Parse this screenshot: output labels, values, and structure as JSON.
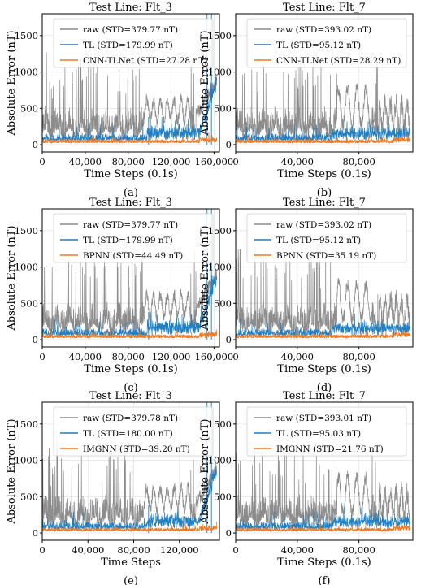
{
  "colors": {
    "raw": "#8c8c8c",
    "tl": "#1f7fc4",
    "model": "#f07a22",
    "grid": "#e6e6e6",
    "axis": "#000000"
  },
  "chart_data": [
    {
      "id": "a",
      "type": "line",
      "title": "Test Line: Flt_3",
      "caption": "(a)",
      "xlabel": "Time Steps (0.1s)",
      "ylabel": "Absolute Error (nT)",
      "xlim": [
        0,
        165000
      ],
      "ylim": [
        -100,
        1800
      ],
      "xticks": [
        0,
        40000,
        80000,
        120000,
        160000
      ],
      "xtick_labels": [
        "0",
        "40,000",
        "80,000",
        "120,000",
        "160,000"
      ],
      "yticks": [
        0,
        500,
        1000,
        1500
      ],
      "ytick_labels": [
        "0",
        "500",
        "1000",
        "1500"
      ],
      "grid": true,
      "legend_position": "top-right",
      "series": [
        {
          "name": "raw (STD=379.77 nT)",
          "color_key": "raw"
        },
        {
          "name": "TL (STD=179.99 nT)",
          "color_key": "tl"
        },
        {
          "name": "CNN-TLNet (STD=27.28 nT)",
          "color_key": "model"
        }
      ]
    },
    {
      "id": "b",
      "type": "line",
      "title": "Test Line: Flt_7",
      "caption": "(b)",
      "xlabel": "Time Steps (0.1s)",
      "ylabel": "Absolute Error (nT)",
      "xlim": [
        0,
        115000
      ],
      "ylim": [
        -100,
        1800
      ],
      "xticks": [
        0,
        40000,
        80000
      ],
      "xtick_labels": [
        "0",
        "40,000",
        "80,000"
      ],
      "yticks": [
        0,
        500,
        1000,
        1500
      ],
      "ytick_labels": [
        "0",
        "500",
        "1000",
        "1500"
      ],
      "grid": true,
      "legend_position": "top-right",
      "series": [
        {
          "name": "raw (STD=393.02 nT)",
          "color_key": "raw"
        },
        {
          "name": "TL (STD=95.12 nT)",
          "color_key": "tl"
        },
        {
          "name": "CNN-TLNet (STD=28.29 nT)",
          "color_key": "model"
        }
      ]
    },
    {
      "id": "c",
      "type": "line",
      "title": "Test Line: Flt_3",
      "caption": "(c)",
      "xlabel": "Time Steps (0.1s)",
      "ylabel": "Absolute Error (nT)",
      "xlim": [
        0,
        165000
      ],
      "ylim": [
        -100,
        1800
      ],
      "xticks": [
        0,
        40000,
        80000,
        120000,
        160000
      ],
      "xtick_labels": [
        "0",
        "40,000",
        "80,000",
        "120,000",
        "160,000"
      ],
      "yticks": [
        0,
        500,
        1000,
        1500
      ],
      "ytick_labels": [
        "0",
        "500",
        "1000",
        "1500"
      ],
      "grid": true,
      "legend_position": "top-right",
      "series": [
        {
          "name": "raw (STD=379.77 nT)",
          "color_key": "raw"
        },
        {
          "name": "TL (STD=179.99 nT)",
          "color_key": "tl"
        },
        {
          "name": "BPNN (STD=44.49 nT)",
          "color_key": "model"
        }
      ]
    },
    {
      "id": "d",
      "type": "line",
      "title": "Test Line: Flt_7",
      "caption": "(d)",
      "xlabel": "Time Steps (0.1s)",
      "ylabel": "Absolute Error (nT)",
      "xlim": [
        0,
        115000
      ],
      "ylim": [
        -100,
        1800
      ],
      "xticks": [
        0,
        40000,
        80000
      ],
      "xtick_labels": [
        "0",
        "40,000",
        "80,000"
      ],
      "yticks": [
        0,
        500,
        1000,
        1500
      ],
      "ytick_labels": [
        "0",
        "500",
        "1000",
        "1500"
      ],
      "grid": true,
      "legend_position": "top-right",
      "series": [
        {
          "name": "raw (STD=393.02 nT)",
          "color_key": "raw"
        },
        {
          "name": "TL (STD=95.12 nT)",
          "color_key": "tl"
        },
        {
          "name": "BPNN (STD=35.19 nT)",
          "color_key": "model"
        }
      ]
    },
    {
      "id": "e",
      "type": "line",
      "title": "Test Line: Flt_3",
      "caption": "(e)",
      "xlabel": "Time Steps",
      "ylabel": "Absolute Error (nT)",
      "xlim": [
        0,
        155000
      ],
      "ylim": [
        -100,
        1800
      ],
      "xticks": [
        0,
        40000,
        80000,
        120000
      ],
      "xtick_labels": [
        "0",
        "40,000",
        "80,000",
        "120,000"
      ],
      "yticks": [
        0,
        500,
        1000,
        1500
      ],
      "ytick_labels": [
        "0",
        "500",
        "1000",
        "1500"
      ],
      "grid": true,
      "legend_position": "top-right",
      "series": [
        {
          "name": "raw (STD=379.78 nT)",
          "color_key": "raw"
        },
        {
          "name": "TL (STD=180.00 nT)",
          "color_key": "tl"
        },
        {
          "name": "IMGNN (STD=39.20 nT)",
          "color_key": "model"
        }
      ]
    },
    {
      "id": "f",
      "type": "line",
      "title": "Test Line: Flt_7",
      "caption": "(f)",
      "xlabel": "Time Steps (0.1s)",
      "ylabel": "Absolute Error (nT)",
      "xlim": [
        0,
        115000
      ],
      "ylim": [
        -100,
        1800
      ],
      "xticks": [
        0,
        40000,
        80000
      ],
      "xtick_labels": [
        "0",
        "40,000",
        "80,000"
      ],
      "yticks": [
        0,
        500,
        1000,
        1500
      ],
      "ytick_labels": [
        "0",
        "500",
        "1000",
        "1500"
      ],
      "grid": true,
      "legend_position": "top-right",
      "series": [
        {
          "name": "raw (STD=393.01 nT)",
          "color_key": "raw"
        },
        {
          "name": "TL (STD=95.03 nT)",
          "color_key": "tl"
        },
        {
          "name": "IMGNN (STD=21.76 nT)",
          "color_key": "model"
        }
      ]
    }
  ]
}
